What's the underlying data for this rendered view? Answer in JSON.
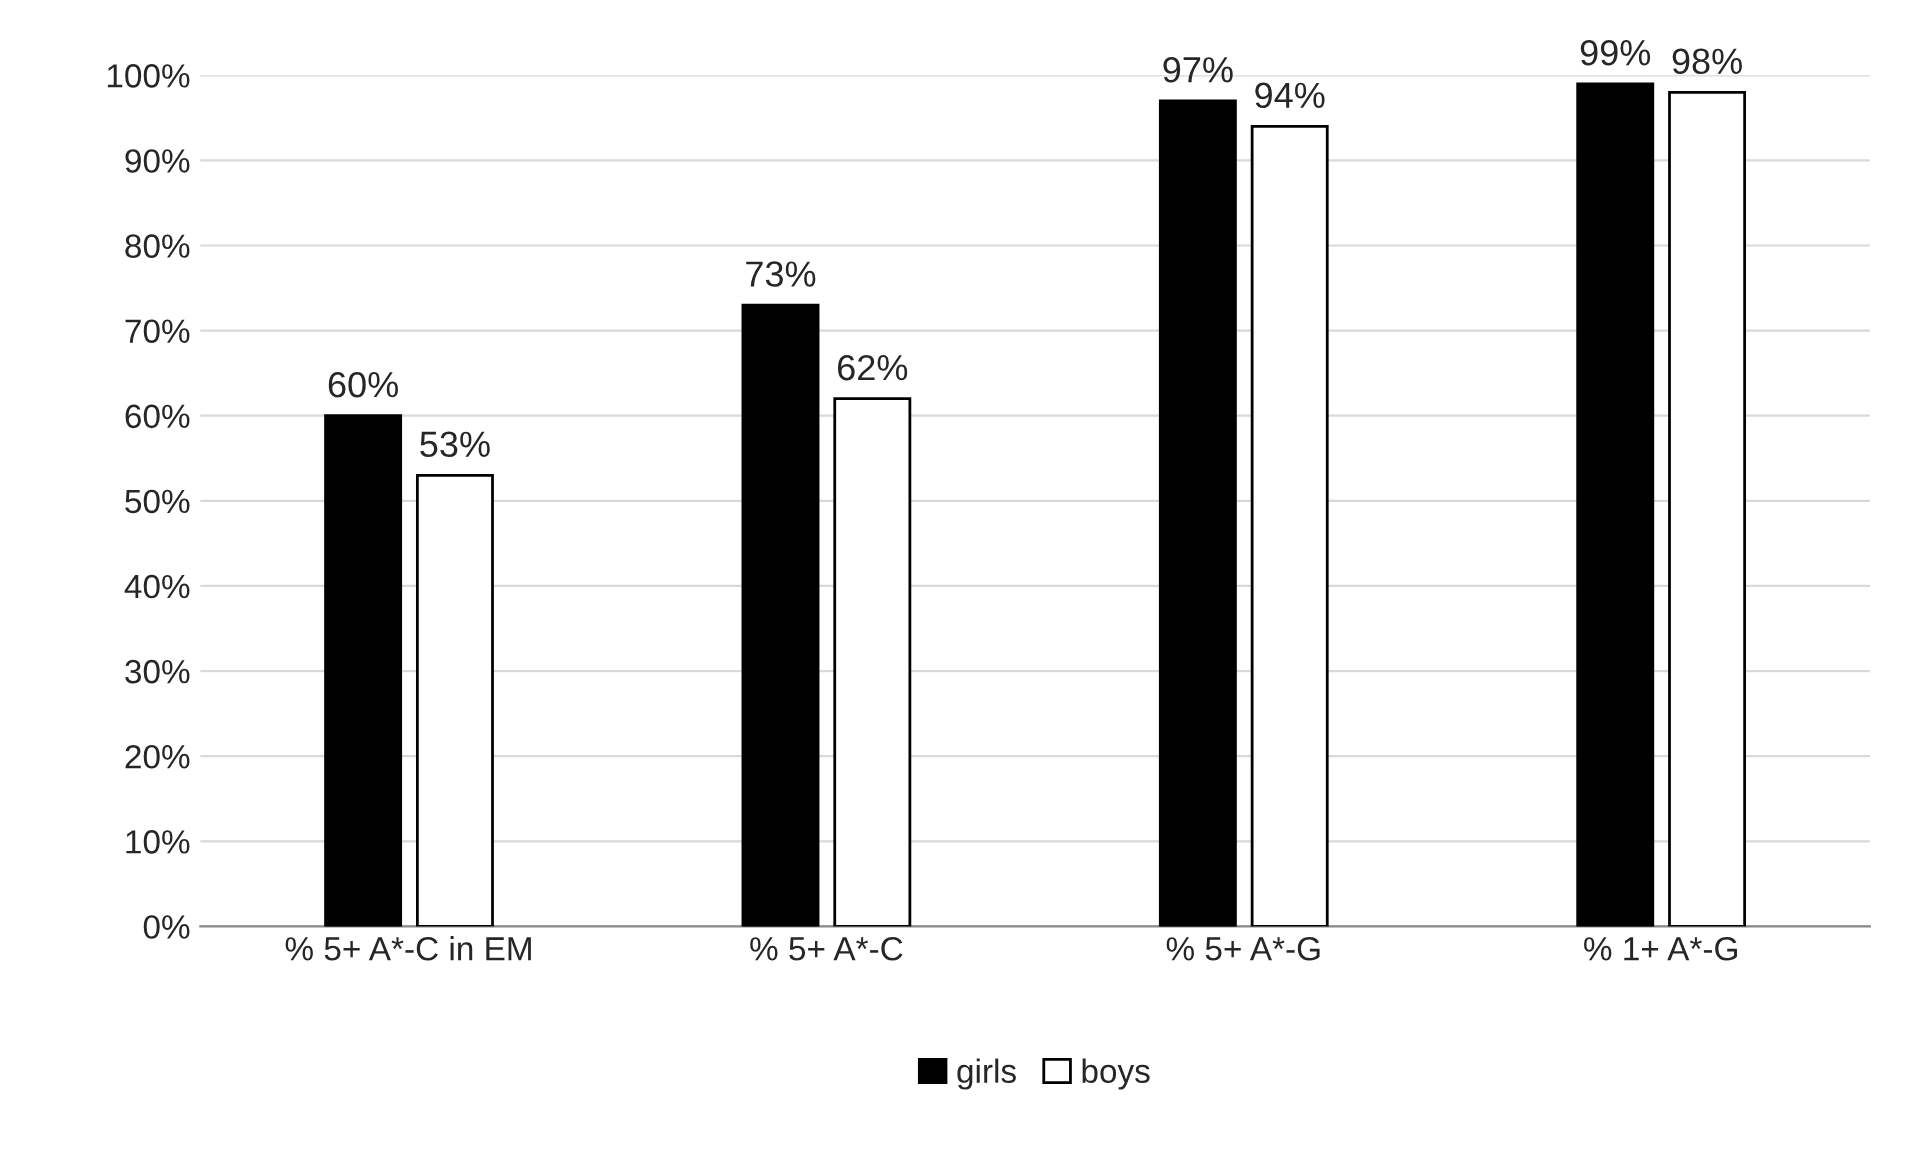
{
  "chart_data": {
    "type": "bar",
    "categories": [
      "% 5+ A*-C in EM",
      "% 5+ A*-C",
      "% 5+ A*-G",
      "% 1+ A*-G"
    ],
    "series": [
      {
        "name": "girls",
        "color": "#000000",
        "values": [
          60,
          73,
          97,
          99
        ],
        "value_labels": [
          "60%",
          "73%",
          "97%",
          "99%"
        ]
      },
      {
        "name": "boys",
        "color": "#ffffff",
        "values": [
          53,
          62,
          94,
          98
        ],
        "value_labels": [
          "53%",
          "62%",
          "94%",
          "98%"
        ]
      }
    ],
    "ylim": [
      0,
      100
    ],
    "yticks": [
      {
        "value": 0,
        "label": "0%"
      },
      {
        "value": 10,
        "label": "10%"
      },
      {
        "value": 20,
        "label": "20%"
      },
      {
        "value": 30,
        "label": "30%"
      },
      {
        "value": 40,
        "label": "40%"
      },
      {
        "value": 50,
        "label": "50%"
      },
      {
        "value": 60,
        "label": "60%"
      },
      {
        "value": 70,
        "label": "70%"
      },
      {
        "value": 80,
        "label": "80%"
      },
      {
        "value": 90,
        "label": "90%"
      },
      {
        "value": 100,
        "label": "100%"
      }
    ],
    "grid": "y",
    "legend": "bottom"
  }
}
